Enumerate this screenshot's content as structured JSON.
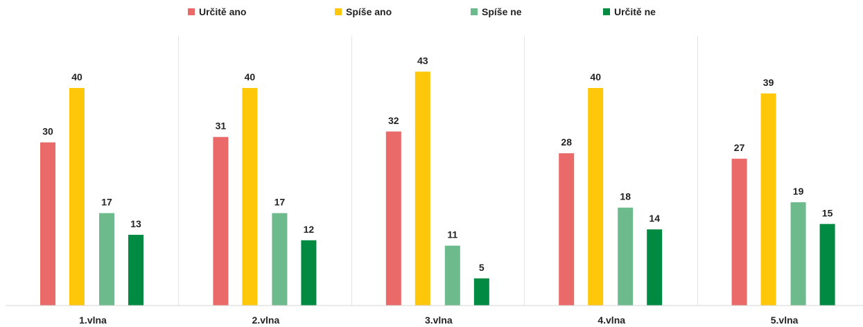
{
  "chart_data": {
    "type": "bar",
    "title": "",
    "xlabel": "",
    "ylabel": "",
    "ylim": [
      0,
      45
    ],
    "grid": false,
    "legend": "top",
    "categories": [
      "1.vlna",
      "2.vlna",
      "3.vlna",
      "4.vlna",
      "5.vlna"
    ],
    "series": [
      {
        "name": "Určitě ano",
        "color": "#e96a69",
        "values": [
          30,
          31,
          32,
          28,
          27
        ]
      },
      {
        "name": "Spíše ano",
        "color": "#fec70a",
        "values": [
          40,
          40,
          43,
          40,
          39
        ]
      },
      {
        "name": "Spíše ne",
        "color": "#6dbb8d",
        "values": [
          17,
          17,
          11,
          18,
          19
        ]
      },
      {
        "name": "Určitě ne",
        "color": "#018a41",
        "values": [
          13,
          12,
          5,
          14,
          15
        ]
      }
    ]
  }
}
